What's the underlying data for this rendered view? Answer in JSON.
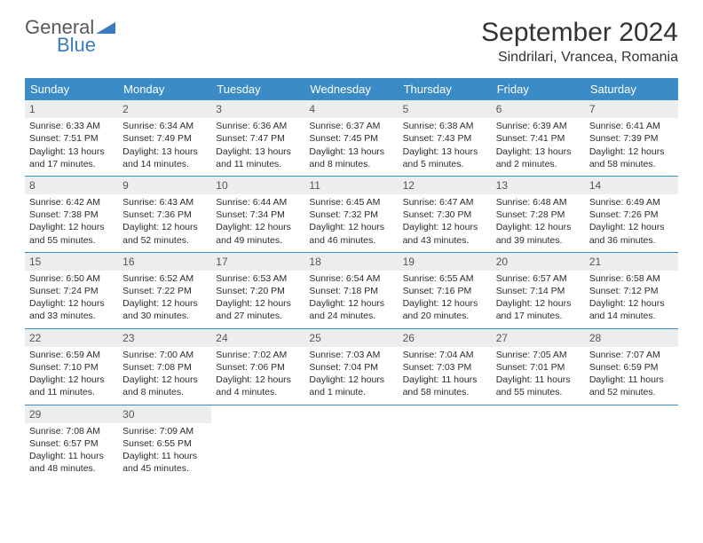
{
  "logo": {
    "top": "General",
    "bottom": "Blue"
  },
  "title": "September 2024",
  "location": "Sindrilari, Vrancea, Romania",
  "colors": {
    "header_bg": "#3b8bc6",
    "header_text": "#ffffff",
    "daynum_bg": "#eceded",
    "week_border": "#3b8bc6",
    "logo_gray": "#585858",
    "logo_blue": "#3b7bbf"
  },
  "day_headers": [
    "Sunday",
    "Monday",
    "Tuesday",
    "Wednesday",
    "Thursday",
    "Friday",
    "Saturday"
  ],
  "weeks": [
    [
      {
        "n": "1",
        "sr": "Sunrise: 6:33 AM",
        "ss": "Sunset: 7:51 PM",
        "dl": "Daylight: 13 hours and 17 minutes."
      },
      {
        "n": "2",
        "sr": "Sunrise: 6:34 AM",
        "ss": "Sunset: 7:49 PM",
        "dl": "Daylight: 13 hours and 14 minutes."
      },
      {
        "n": "3",
        "sr": "Sunrise: 6:36 AM",
        "ss": "Sunset: 7:47 PM",
        "dl": "Daylight: 13 hours and 11 minutes."
      },
      {
        "n": "4",
        "sr": "Sunrise: 6:37 AM",
        "ss": "Sunset: 7:45 PM",
        "dl": "Daylight: 13 hours and 8 minutes."
      },
      {
        "n": "5",
        "sr": "Sunrise: 6:38 AM",
        "ss": "Sunset: 7:43 PM",
        "dl": "Daylight: 13 hours and 5 minutes."
      },
      {
        "n": "6",
        "sr": "Sunrise: 6:39 AM",
        "ss": "Sunset: 7:41 PM",
        "dl": "Daylight: 13 hours and 2 minutes."
      },
      {
        "n": "7",
        "sr": "Sunrise: 6:41 AM",
        "ss": "Sunset: 7:39 PM",
        "dl": "Daylight: 12 hours and 58 minutes."
      }
    ],
    [
      {
        "n": "8",
        "sr": "Sunrise: 6:42 AM",
        "ss": "Sunset: 7:38 PM",
        "dl": "Daylight: 12 hours and 55 minutes."
      },
      {
        "n": "9",
        "sr": "Sunrise: 6:43 AM",
        "ss": "Sunset: 7:36 PM",
        "dl": "Daylight: 12 hours and 52 minutes."
      },
      {
        "n": "10",
        "sr": "Sunrise: 6:44 AM",
        "ss": "Sunset: 7:34 PM",
        "dl": "Daylight: 12 hours and 49 minutes."
      },
      {
        "n": "11",
        "sr": "Sunrise: 6:45 AM",
        "ss": "Sunset: 7:32 PM",
        "dl": "Daylight: 12 hours and 46 minutes."
      },
      {
        "n": "12",
        "sr": "Sunrise: 6:47 AM",
        "ss": "Sunset: 7:30 PM",
        "dl": "Daylight: 12 hours and 43 minutes."
      },
      {
        "n": "13",
        "sr": "Sunrise: 6:48 AM",
        "ss": "Sunset: 7:28 PM",
        "dl": "Daylight: 12 hours and 39 minutes."
      },
      {
        "n": "14",
        "sr": "Sunrise: 6:49 AM",
        "ss": "Sunset: 7:26 PM",
        "dl": "Daylight: 12 hours and 36 minutes."
      }
    ],
    [
      {
        "n": "15",
        "sr": "Sunrise: 6:50 AM",
        "ss": "Sunset: 7:24 PM",
        "dl": "Daylight: 12 hours and 33 minutes."
      },
      {
        "n": "16",
        "sr": "Sunrise: 6:52 AM",
        "ss": "Sunset: 7:22 PM",
        "dl": "Daylight: 12 hours and 30 minutes."
      },
      {
        "n": "17",
        "sr": "Sunrise: 6:53 AM",
        "ss": "Sunset: 7:20 PM",
        "dl": "Daylight: 12 hours and 27 minutes."
      },
      {
        "n": "18",
        "sr": "Sunrise: 6:54 AM",
        "ss": "Sunset: 7:18 PM",
        "dl": "Daylight: 12 hours and 24 minutes."
      },
      {
        "n": "19",
        "sr": "Sunrise: 6:55 AM",
        "ss": "Sunset: 7:16 PM",
        "dl": "Daylight: 12 hours and 20 minutes."
      },
      {
        "n": "20",
        "sr": "Sunrise: 6:57 AM",
        "ss": "Sunset: 7:14 PM",
        "dl": "Daylight: 12 hours and 17 minutes."
      },
      {
        "n": "21",
        "sr": "Sunrise: 6:58 AM",
        "ss": "Sunset: 7:12 PM",
        "dl": "Daylight: 12 hours and 14 minutes."
      }
    ],
    [
      {
        "n": "22",
        "sr": "Sunrise: 6:59 AM",
        "ss": "Sunset: 7:10 PM",
        "dl": "Daylight: 12 hours and 11 minutes."
      },
      {
        "n": "23",
        "sr": "Sunrise: 7:00 AM",
        "ss": "Sunset: 7:08 PM",
        "dl": "Daylight: 12 hours and 8 minutes."
      },
      {
        "n": "24",
        "sr": "Sunrise: 7:02 AM",
        "ss": "Sunset: 7:06 PM",
        "dl": "Daylight: 12 hours and 4 minutes."
      },
      {
        "n": "25",
        "sr": "Sunrise: 7:03 AM",
        "ss": "Sunset: 7:04 PM",
        "dl": "Daylight: 12 hours and 1 minute."
      },
      {
        "n": "26",
        "sr": "Sunrise: 7:04 AM",
        "ss": "Sunset: 7:03 PM",
        "dl": "Daylight: 11 hours and 58 minutes."
      },
      {
        "n": "27",
        "sr": "Sunrise: 7:05 AM",
        "ss": "Sunset: 7:01 PM",
        "dl": "Daylight: 11 hours and 55 minutes."
      },
      {
        "n": "28",
        "sr": "Sunrise: 7:07 AM",
        "ss": "Sunset: 6:59 PM",
        "dl": "Daylight: 11 hours and 52 minutes."
      }
    ],
    [
      {
        "n": "29",
        "sr": "Sunrise: 7:08 AM",
        "ss": "Sunset: 6:57 PM",
        "dl": "Daylight: 11 hours and 48 minutes."
      },
      {
        "n": "30",
        "sr": "Sunrise: 7:09 AM",
        "ss": "Sunset: 6:55 PM",
        "dl": "Daylight: 11 hours and 45 minutes."
      },
      null,
      null,
      null,
      null,
      null
    ]
  ]
}
